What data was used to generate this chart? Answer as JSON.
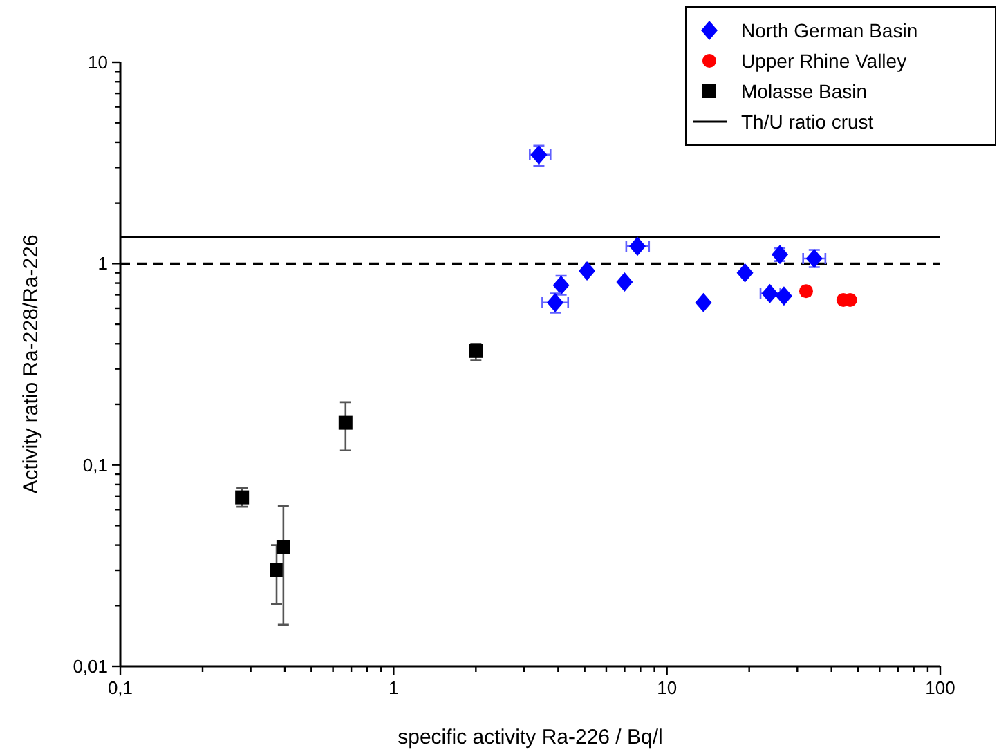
{
  "chart_data": {
    "type": "scatter",
    "xlabel": "specific activity Ra-226 / Bq/l",
    "ylabel": "Activity ratio Ra-228/Ra-226",
    "log": "xy",
    "xlim": [
      0.1,
      100
    ],
    "ylim": [
      0.01,
      10
    ],
    "xticks": [
      {
        "value": 0.1,
        "label": "0,1"
      },
      {
        "value": 0.2,
        "label": null
      },
      {
        "value": 0.3,
        "label": null
      },
      {
        "value": 0.4,
        "label": null
      },
      {
        "value": 0.5,
        "label": null
      },
      {
        "value": 0.6,
        "label": null
      },
      {
        "value": 0.7,
        "label": null
      },
      {
        "value": 0.8,
        "label": null
      },
      {
        "value": 0.9,
        "label": null
      },
      1,
      {
        "value": 2,
        "label": null
      },
      {
        "value": 3,
        "label": null
      },
      {
        "value": 4,
        "label": null
      },
      {
        "value": 5,
        "label": null
      },
      {
        "value": 6,
        "label": null
      },
      {
        "value": 7,
        "label": null
      },
      {
        "value": 8,
        "label": null
      },
      {
        "value": 9,
        "label": null
      },
      10,
      {
        "value": 20,
        "label": null
      },
      {
        "value": 30,
        "label": null
      },
      {
        "value": 40,
        "label": null
      },
      {
        "value": 50,
        "label": null
      },
      {
        "value": 60,
        "label": null
      },
      {
        "value": 70,
        "label": null
      },
      {
        "value": 80,
        "label": null
      },
      {
        "value": 90,
        "label": null
      },
      100
    ],
    "yticks": [
      {
        "value": 0.01,
        "label": "0,01"
      },
      {
        "value": 0.02,
        "label": null
      },
      {
        "value": 0.03,
        "label": null
      },
      {
        "value": 0.04,
        "label": null
      },
      {
        "value": 0.05,
        "label": null
      },
      {
        "value": 0.06,
        "label": null
      },
      {
        "value": 0.07,
        "label": null
      },
      {
        "value": 0.08,
        "label": null
      },
      {
        "value": 0.09,
        "label": null
      },
      {
        "value": 0.1,
        "label": "0,1"
      },
      {
        "value": 0.2,
        "label": null
      },
      {
        "value": 0.3,
        "label": null
      },
      {
        "value": 0.4,
        "label": null
      },
      {
        "value": 0.5,
        "label": null
      },
      {
        "value": 0.6,
        "label": null
      },
      {
        "value": 0.7,
        "label": null
      },
      {
        "value": 0.8,
        "label": null
      },
      {
        "value": 0.9,
        "label": null
      },
      1,
      {
        "value": 2,
        "label": null
      },
      {
        "value": 3,
        "label": null
      },
      {
        "value": 4,
        "label": null
      },
      {
        "value": 5,
        "label": null
      },
      {
        "value": 6,
        "label": null
      },
      {
        "value": 7,
        "label": null
      },
      {
        "value": 8,
        "label": null
      },
      {
        "value": 9,
        "label": null
      },
      10
    ],
    "legend": "top right",
    "grid": false,
    "series": [
      {
        "name": "North German Basin",
        "color": "#0000ff",
        "marker": "diamond",
        "x": [
          3.4,
          7.8,
          5.1,
          4.1,
          3.9,
          7.0,
          13.6,
          19.3,
          25.9,
          34.6,
          23.8,
          26.8
        ],
        "values": [
          3.47,
          1.22,
          0.92,
          0.78,
          0.64,
          0.81,
          0.64,
          0.9,
          1.11,
          1.06,
          0.71,
          0.69
        ],
        "errors": [
          [
            3.05,
            3.85
          ],
          null,
          null,
          [
            0.7,
            0.87
          ],
          [
            0.57,
            0.71
          ],
          null,
          null,
          null,
          [
            1.03,
            1.19
          ],
          [
            0.96,
            1.17
          ],
          null,
          null
        ],
        "xerrors": [
          [
            3.15,
            3.75
          ],
          [
            7.1,
            8.6
          ],
          null,
          null,
          [
            3.5,
            4.35
          ],
          null,
          null,
          null,
          null,
          [
            31.5,
            38
          ],
          [
            22,
            26
          ],
          null
        ]
      },
      {
        "name": "Upper Rhine Valley",
        "color": "#ff0000",
        "marker": "circle",
        "x": [
          32.3,
          44.2,
          46.8
        ],
        "values": [
          0.73,
          0.66,
          0.66
        ]
      },
      {
        "name": "Molasse Basin",
        "color": "#000000",
        "marker": "square",
        "x": [
          0.279,
          0.373,
          0.395,
          0.667,
          2.0
        ],
        "values": [
          0.069,
          0.03,
          0.039,
          0.162,
          0.368
        ],
        "errors": [
          [
            0.062,
            0.077
          ],
          [
            0.0204,
            0.04
          ],
          [
            0.0161,
            0.0627
          ],
          [
            0.118,
            0.205
          ],
          [
            0.33,
            0.4
          ]
        ]
      }
    ],
    "ref_lines": [
      {
        "axis": "y",
        "value": 1.35,
        "label": "Th/U ratio crust",
        "color": "#000000",
        "line_style": "solid"
      },
      {
        "axis": "y",
        "value": 1,
        "color": "#000000",
        "line_style": "dashed"
      }
    ]
  }
}
